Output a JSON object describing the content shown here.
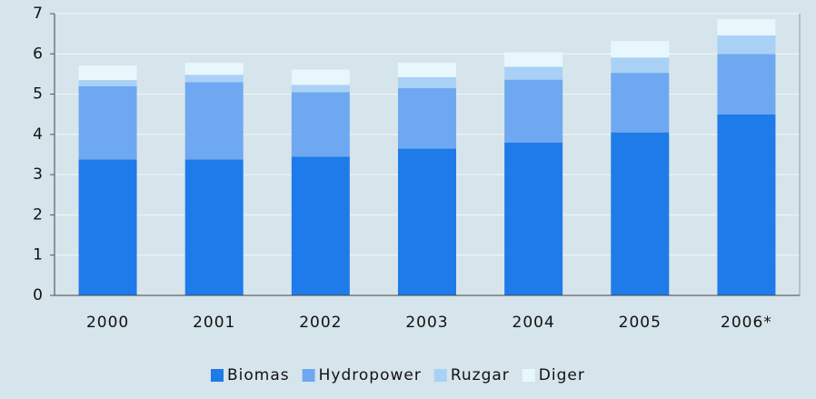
{
  "chart_data": {
    "type": "stacked-bar",
    "categories": [
      "2000",
      "2001",
      "2002",
      "2003",
      "2004",
      "2005",
      "2006*"
    ],
    "series": [
      {
        "name": "Biomas",
        "color": "#1f7be9",
        "values": [
          3.38,
          3.38,
          3.45,
          3.65,
          3.8,
          4.05,
          4.5
        ]
      },
      {
        "name": "Hydropower",
        "color": "#6ea8f1",
        "values": [
          1.82,
          1.92,
          1.6,
          1.5,
          1.56,
          1.48,
          1.5
        ]
      },
      {
        "name": "Ruzgar",
        "color": "#a9d1f6",
        "values": [
          0.15,
          0.18,
          0.18,
          0.27,
          0.32,
          0.38,
          0.46
        ]
      },
      {
        "name": "Diger",
        "color": "#e8f7fc",
        "values": [
          0.36,
          0.3,
          0.38,
          0.36,
          0.36,
          0.41,
          0.4
        ]
      }
    ],
    "ylim": [
      0,
      7
    ],
    "yticks": [
      0,
      1,
      2,
      3,
      4,
      5,
      6,
      7
    ],
    "grid": true,
    "legend": "bottom"
  }
}
